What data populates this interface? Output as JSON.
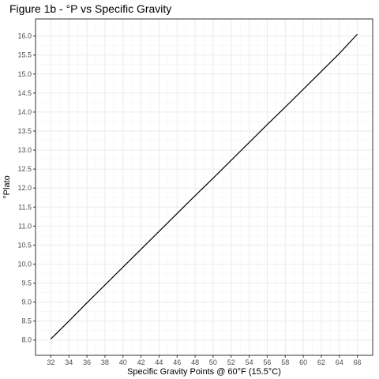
{
  "chart_data": {
    "type": "line",
    "title": "Figure 1b - °P vs Specific Gravity",
    "xlabel": "Specific Gravity Points @ 60°F (15.5°C)",
    "ylabel": "°Plato",
    "xlim": [
      30.3,
      67.7
    ],
    "ylim": [
      7.6,
      16.45
    ],
    "x_ticks": [
      32,
      34,
      36,
      38,
      40,
      42,
      44,
      46,
      48,
      50,
      52,
      54,
      56,
      58,
      60,
      62,
      64,
      66
    ],
    "y_ticks": [
      8.0,
      8.5,
      9.0,
      9.5,
      10.0,
      10.5,
      11.0,
      11.5,
      12.0,
      12.5,
      13.0,
      13.5,
      14.0,
      14.5,
      15.0,
      15.5,
      16.0
    ],
    "grid": true,
    "legend": "none",
    "series": [
      {
        "line_color": "#000000",
        "x": [
          32,
          34,
          36,
          38,
          40,
          42,
          44,
          46,
          48,
          50,
          52,
          54,
          56,
          58,
          60,
          62,
          64,
          66
        ],
        "y": [
          8.03,
          8.5,
          8.98,
          9.45,
          9.92,
          10.39,
          10.86,
          11.33,
          11.8,
          12.26,
          12.73,
          13.2,
          13.67,
          14.13,
          14.6,
          15.07,
          15.54,
          16.05
        ]
      }
    ]
  }
}
